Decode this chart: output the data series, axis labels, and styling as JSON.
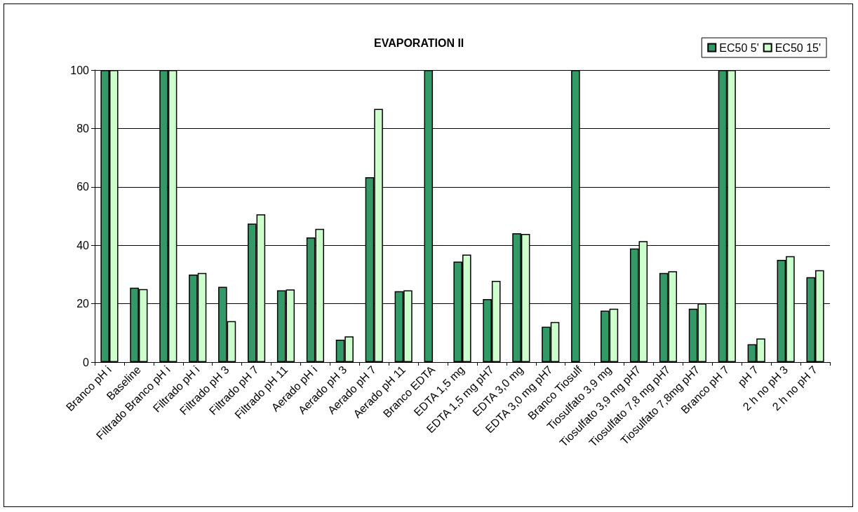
{
  "chart_data": {
    "type": "bar",
    "title": "EVAPORATION II",
    "categories": [
      "Branco pH i",
      "Baseline",
      "Filtrado Branco pH i",
      "Filtrado pH i",
      "Filtrado pH 3",
      "Filtrado pH 7",
      "Filtrado pH 11",
      "Aerado pH i",
      "Aerado pH 3",
      "Aerado pH 7",
      "Aerado pH 11",
      "Branco EDTA",
      "EDTA 1,5 mg",
      "EDTA 1,5 mg pH7",
      "EDTA 3,0 mg",
      "EDTA 3,0 mg pH7",
      "Branco Tiosulf",
      "Tiosulfato 3,9 mg",
      "Tiosulfato 3,9 mg pH7",
      "Tiosulfato 7,8 mg pH7",
      "Tiosulfato 7,8mg pH7",
      "Branco pH 7",
      "pH 7",
      "2 h no pH 3",
      "2 h no pH 7"
    ],
    "series": [
      {
        "name": "EC50 5'",
        "color": "#339966",
        "values": [
          100,
          25.5,
          100,
          30,
          25.8,
          47.4,
          24.6,
          42.7,
          7.7,
          63.3,
          24.3,
          100,
          34.4,
          21.6,
          44.1,
          12.1,
          100,
          17.6,
          38.9,
          30.5,
          18.3,
          100,
          6.1,
          35,
          29.1
        ]
      },
      {
        "name": "EC50 15'",
        "color": "#ccffcc",
        "values": [
          100,
          25,
          100,
          30.5,
          14,
          50.6,
          24.9,
          45.6,
          8.8,
          86.7,
          24.6,
          null,
          36.8,
          27.8,
          43.9,
          13.7,
          null,
          18.3,
          41.4,
          31.1,
          20.1,
          100,
          8.1,
          36.3,
          31.5
        ]
      }
    ],
    "ylim": [
      0,
      100
    ],
    "yticks": [
      0,
      20,
      40,
      60,
      80,
      100
    ],
    "grid": "y",
    "legend": "top right"
  }
}
